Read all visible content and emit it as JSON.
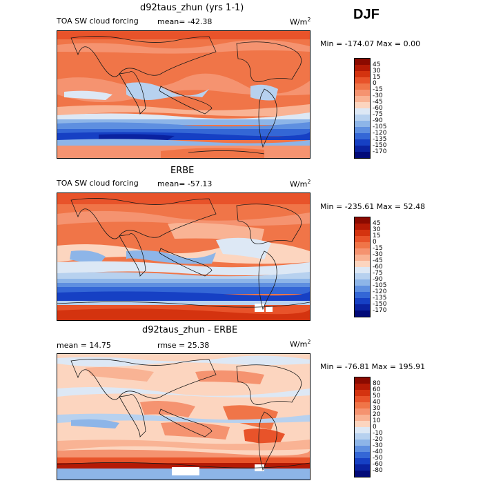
{
  "season": "DJF",
  "panels": [
    {
      "title": "d92taus_zhun (yrs 1-1)",
      "left_label": "TOA SW cloud forcing",
      "mid_label": "mean= -42.38",
      "units": "W/m",
      "units_sup": "2",
      "minmax": "Min = -174.07 Max =    0.00",
      "levels": [
        "45",
        "30",
        "15",
        "0",
        "-15",
        "-30",
        "-45",
        "-60",
        "-75",
        "-90",
        "-105",
        "-120",
        "-135",
        "-150",
        "-170"
      ],
      "colors": [
        "#8b0a00",
        "#b41a05",
        "#d4330f",
        "#e8532a",
        "#f07548",
        "#f59370",
        "#f9b394",
        "#fcd5bf",
        "#dde8f5",
        "#b7d1ef",
        "#8db5e8",
        "#5e8fe0",
        "#3467d6",
        "#1640c4",
        "#0a22a0",
        "#020a78"
      ]
    },
    {
      "title": "ERBE",
      "left_label": "TOA SW cloud forcing",
      "mid_label": "mean= -57.13",
      "units": "W/m",
      "units_sup": "2",
      "minmax": "Min = -235.61 Max =  52.48",
      "levels": [
        "45",
        "30",
        "15",
        "0",
        "-15",
        "-30",
        "-45",
        "-60",
        "-75",
        "-90",
        "-105",
        "-120",
        "-135",
        "-150",
        "-170"
      ],
      "colors": [
        "#8b0a00",
        "#b41a05",
        "#d4330f",
        "#e8532a",
        "#f07548",
        "#f59370",
        "#f9b394",
        "#fcd5bf",
        "#dde8f5",
        "#b7d1ef",
        "#8db5e8",
        "#5e8fe0",
        "#3467d6",
        "#1640c4",
        "#0a22a0",
        "#020a78"
      ]
    },
    {
      "title": "d92taus_zhun - ERBE",
      "left_label": "mean =  14.75",
      "mid_label": "rmse =  25.38",
      "units": "W/m",
      "units_sup": "2",
      "minmax": "Min = -76.81 Max = 195.91",
      "levels": [
        "80",
        "60",
        "50",
        "40",
        "30",
        "20",
        "10",
        "0",
        "-10",
        "-20",
        "-30",
        "-40",
        "-50",
        "-60",
        "-80"
      ],
      "colors": [
        "#8b0a00",
        "#b41a05",
        "#d4330f",
        "#e8532a",
        "#f07548",
        "#f59370",
        "#f9b394",
        "#fcd5bf",
        "#dde8f5",
        "#b7d1ef",
        "#8db5e8",
        "#5e8fe0",
        "#3467d6",
        "#1640c4",
        "#0a22a0",
        "#020a78"
      ]
    }
  ]
}
